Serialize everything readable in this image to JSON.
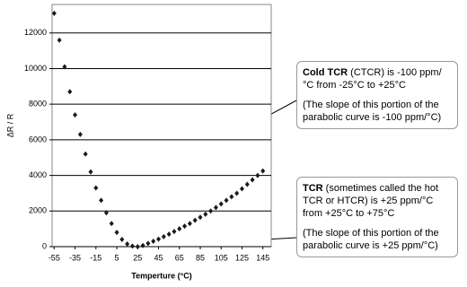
{
  "chart_data": {
    "type": "scatter",
    "x_label": "Temperture (°C)",
    "y_label": "ΔR / R",
    "x": [
      -55,
      -50,
      -45,
      -40,
      -35,
      -30,
      -25,
      -20,
      -15,
      -10,
      -5,
      0,
      5,
      10,
      15,
      20,
      25,
      30,
      35,
      40,
      45,
      50,
      55,
      60,
      65,
      70,
      75,
      80,
      85,
      90,
      95,
      100,
      105,
      110,
      115,
      120,
      125,
      130,
      135,
      140,
      145
    ],
    "values": [
      13100,
      11600,
      10100,
      8700,
      7400,
      6300,
      5200,
      4200,
      3300,
      2600,
      1900,
      1300,
      800,
      400,
      150,
      30,
      0,
      60,
      180,
      300,
      420,
      560,
      700,
      850,
      1000,
      1150,
      1300,
      1480,
      1650,
      1820,
      2000,
      2200,
      2400,
      2600,
      2800,
      3000,
      3250,
      3500,
      3750,
      4000,
      4250
    ],
    "color": "#1a1a1a",
    "xlim": [
      -57,
      153
    ],
    "xticks": [
      -55,
      -35,
      -15,
      5,
      25,
      45,
      65,
      85,
      105,
      125,
      145
    ],
    "ylim": [
      0,
      13600
    ],
    "yticks": [
      0,
      2000,
      4000,
      6000,
      8000,
      10000,
      12000
    ],
    "grid": true,
    "annotations": [
      {
        "bold": "Cold TCR",
        "text": " (CTCR) is -100 ppm/°C from -25°C to +25°C",
        "note": "(The slope of this portion of the parabolic curve is -100 ppm/°C)"
      },
      {
        "bold": "TCR",
        "text": " (sometimes called the hot TCR or HTCR) is +25 ppm/°C from +25°C to +75°C",
        "note": "(The slope of this portion of the parabolic curve is +25 ppm/°C)"
      }
    ]
  }
}
